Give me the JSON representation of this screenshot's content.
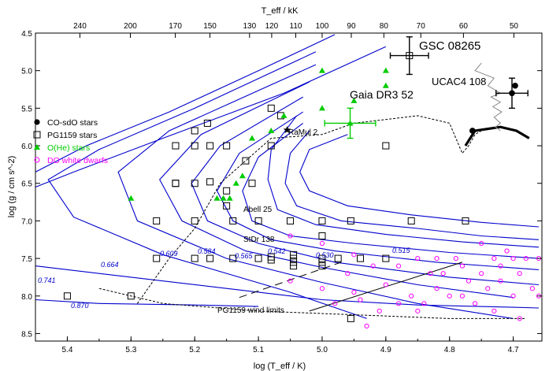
{
  "chart_data": {
    "type": "scatter",
    "title": "",
    "xlabel": "log (T_eff / K)",
    "ylabel": "log (g / cm s^-2)",
    "top_xlabel": "T_eff / kK",
    "xlim": [
      5.45,
      4.655
    ],
    "ylim": [
      8.6,
      4.5
    ],
    "x_ticks": [
      5.4,
      5.3,
      5.2,
      5.1,
      5.0,
      4.9,
      4.8,
      4.7
    ],
    "y_ticks": [
      4.5,
      5.0,
      5.5,
      6.0,
      6.5,
      7.0,
      7.5,
      8.0,
      8.5
    ],
    "top_ticks": [
      240,
      200,
      170,
      150,
      130,
      120,
      110,
      100,
      90,
      80,
      70,
      60,
      50
    ],
    "grid": false,
    "legend_position": "top-left",
    "legend": [
      {
        "label": "CO-sdO stars",
        "marker": "filled-circle",
        "color": "#000000"
      },
      {
        "label": "PG1159 stars",
        "marker": "open-square",
        "color": "#000000"
      },
      {
        "label": "O(He) stars",
        "marker": "filled-triangle",
        "color": "#00cc00"
      },
      {
        "label": "DO white dwarfs",
        "marker": "open-circle",
        "color": "#ff00ff"
      }
    ],
    "colors": {
      "tracks": "#0000cc",
      "co_sdo": "#000000",
      "pg1159": "#000000",
      "ohe": "#00cc00",
      "do_wd": "#ff00ff"
    },
    "track_masses": [
      "0.870",
      "0.741",
      "0.664",
      "0.609",
      "0.584",
      "0.565",
      "0.542",
      "0.530",
      "0.515"
    ],
    "annotations": {
      "gsc": "GSC 08265",
      "ucac": "UCAC4 108",
      "gaia": "Gaia DR3 52",
      "ramul": "RaMul 2",
      "abell": "Abell 25",
      "stdr": "StDr 138",
      "windlimits": "PG1159 wind limits"
    },
    "series": [
      {
        "name": "CO-sdO stars",
        "points": [
          [
            4.697,
            5.2
          ],
          [
            4.702,
            5.3
          ],
          [
            4.764,
            5.8
          ]
        ]
      },
      {
        "name": "PG1159 stars",
        "points": [
          [
            5.4,
            8.0
          ],
          [
            5.3,
            8.0
          ],
          [
            5.26,
            7.0
          ],
          [
            5.26,
            7.5
          ],
          [
            5.23,
            6.0
          ],
          [
            5.23,
            6.5
          ],
          [
            5.23,
            6.5
          ],
          [
            5.2,
            5.8
          ],
          [
            5.2,
            6.0
          ],
          [
            5.2,
            6.5
          ],
          [
            5.2,
            7.0
          ],
          [
            5.2,
            7.5
          ],
          [
            5.18,
            5.7
          ],
          [
            5.176,
            6.0
          ],
          [
            5.176,
            6.48
          ],
          [
            5.176,
            7.5
          ],
          [
            5.15,
            6.0
          ],
          [
            5.15,
            6.6
          ],
          [
            5.15,
            6.8
          ],
          [
            5.14,
            7.0
          ],
          [
            5.14,
            7.5
          ],
          [
            5.12,
            6.2
          ],
          [
            5.11,
            6.5
          ],
          [
            5.1,
            7.0
          ],
          [
            5.1,
            7.5
          ],
          [
            5.08,
            5.5
          ],
          [
            5.08,
            6.0
          ],
          [
            5.08,
            7.48
          ],
          [
            5.08,
            7.52
          ],
          [
            5.065,
            5.6
          ],
          [
            5.05,
            7.0
          ],
          [
            5.045,
            7.45
          ],
          [
            5.045,
            7.5
          ],
          [
            5.045,
            7.55
          ],
          [
            5.045,
            7.6
          ],
          [
            5.0,
            7.0
          ],
          [
            5.0,
            7.2
          ],
          [
            5.0,
            7.5
          ],
          [
            5.0,
            7.55
          ],
          [
            5.0,
            7.6
          ],
          [
            4.975,
            7.5
          ],
          [
            4.955,
            7.0
          ],
          [
            4.955,
            8.3
          ],
          [
            4.94,
            7.5
          ],
          [
            4.9,
            6.0
          ],
          [
            4.9,
            7.5
          ],
          [
            4.86,
            7.0
          ],
          [
            4.775,
            7.0
          ],
          [
            4.863,
            4.8
          ]
        ]
      },
      {
        "name": "O(He) stars",
        "points": [
          [
            5.3,
            6.7
          ],
          [
            5.165,
            6.7
          ],
          [
            5.155,
            6.7
          ],
          [
            5.145,
            6.7
          ],
          [
            5.135,
            6.5
          ],
          [
            5.125,
            6.4
          ],
          [
            5.11,
            5.9
          ],
          [
            5.08,
            5.8
          ],
          [
            5.06,
            5.6
          ],
          [
            5.0,
            5.0
          ],
          [
            5.0,
            5.5
          ],
          [
            4.95,
            5.4
          ],
          [
            4.9,
            5.0
          ],
          [
            4.9,
            5.2
          ],
          [
            4.956,
            5.7
          ]
        ]
      },
      {
        "name": "DO white dwarfs",
        "points": [
          [
            5.05,
            7.2
          ],
          [
            5.05,
            7.8
          ],
          [
            5.0,
            7.3
          ],
          [
            5.0,
            7.9
          ],
          [
            4.95,
            7.45
          ],
          [
            4.92,
            7.6
          ],
          [
            4.88,
            7.6
          ],
          [
            4.85,
            7.5
          ],
          [
            4.83,
            7.7
          ],
          [
            4.82,
            7.5
          ],
          [
            4.79,
            7.5
          ],
          [
            4.78,
            7.6
          ],
          [
            4.75,
            7.3
          ],
          [
            4.74,
            7.9
          ],
          [
            4.72,
            7.8
          ],
          [
            4.7,
            7.5
          ],
          [
            4.68,
            7.5
          ],
          [
            4.66,
            7.5
          ],
          [
            4.8,
            8.0
          ],
          [
            4.78,
            8.0
          ],
          [
            4.76,
            8.1
          ],
          [
            4.73,
            8.2
          ],
          [
            4.7,
            8.0
          ],
          [
            4.69,
            8.3
          ],
          [
            4.86,
            8.0
          ],
          [
            4.84,
            8.1
          ],
          [
            4.82,
            7.9
          ],
          [
            4.9,
            7.85
          ],
          [
            4.95,
            7.95
          ],
          [
            4.94,
            8.05
          ],
          [
            4.88,
            8.1
          ],
          [
            4.85,
            8.2
          ],
          [
            4.75,
            7.7
          ],
          [
            4.72,
            7.6
          ],
          [
            4.69,
            7.7
          ],
          [
            4.67,
            7.9
          ],
          [
            4.66,
            8.0
          ],
          [
            4.71,
            7.4
          ],
          [
            4.73,
            7.5
          ],
          [
            4.77,
            7.8
          ],
          [
            4.81,
            7.7
          ],
          [
            4.91,
            8.2
          ],
          [
            4.93,
            8.4
          ],
          [
            4.98,
            8.1
          ],
          [
            4.96,
            7.7
          ]
        ]
      }
    ]
  }
}
